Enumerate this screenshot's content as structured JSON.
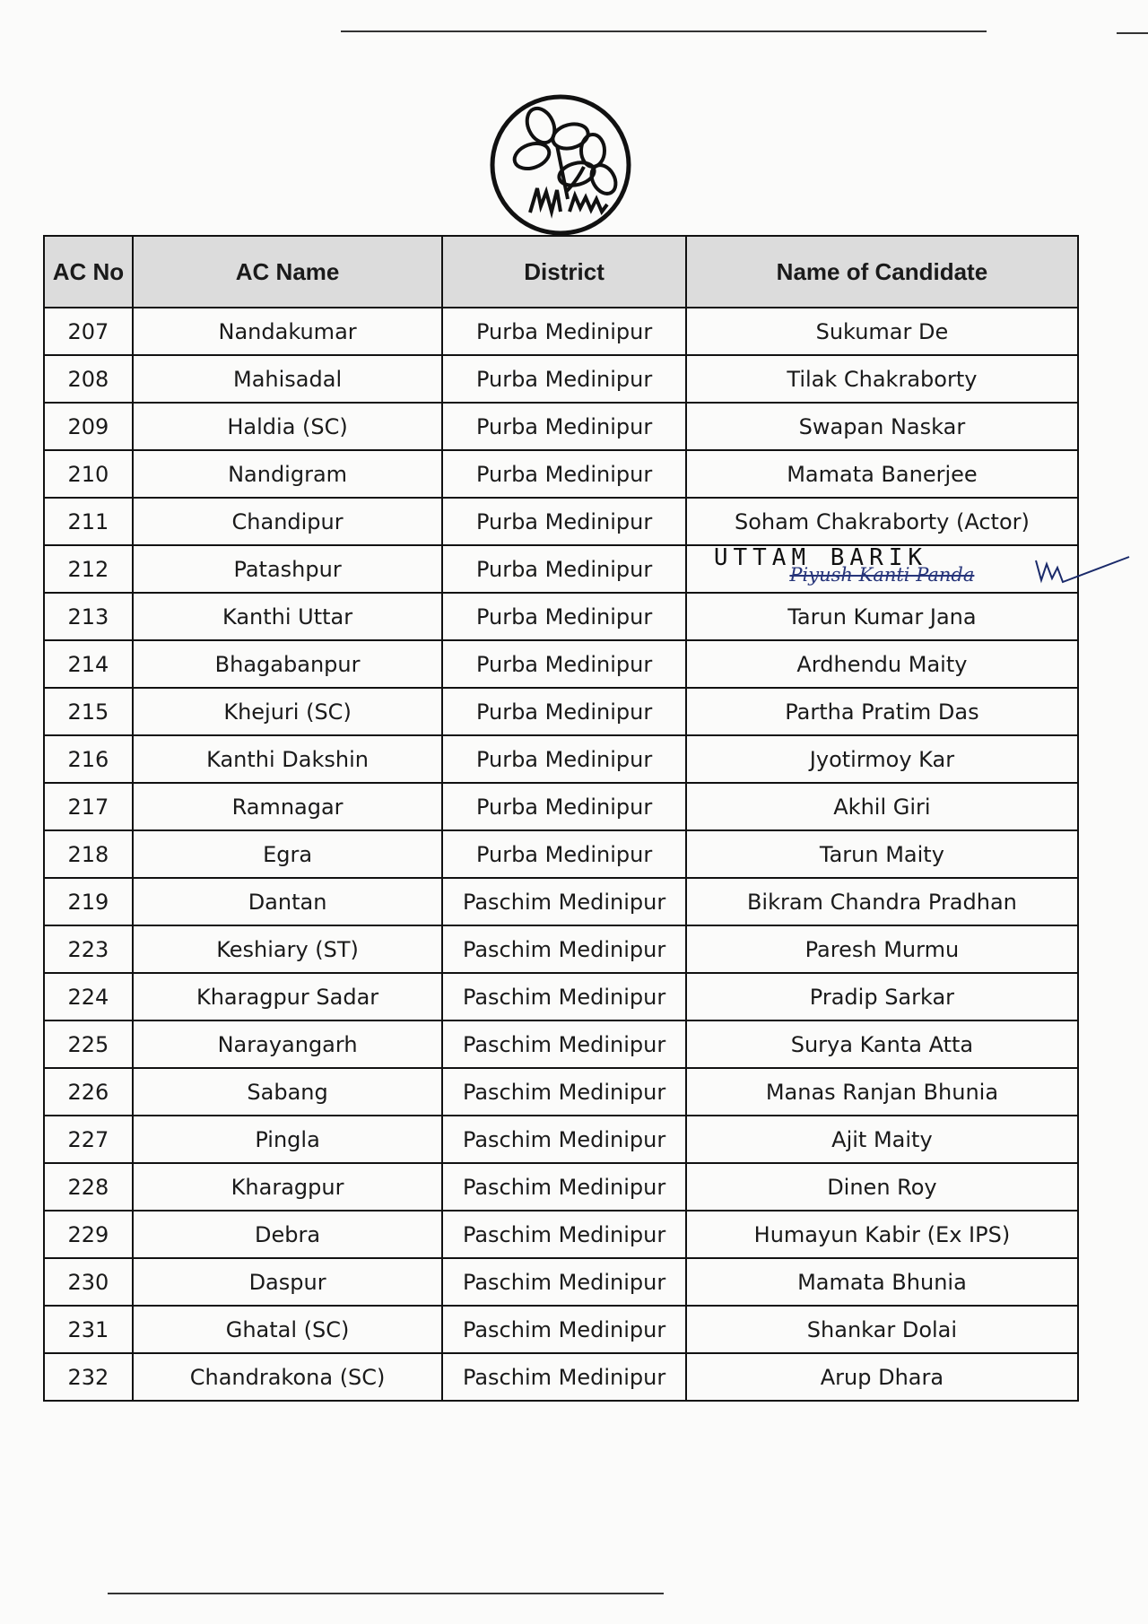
{
  "logo": {
    "name": "twin-flowers-grass-emblem"
  },
  "table": {
    "headers": [
      "AC No",
      "AC Name",
      "District",
      "Name of Candidate"
    ],
    "rows": [
      {
        "no": "207",
        "name": "Nandakumar",
        "district": "Purba Medinipur",
        "candidate": "Sukumar De"
      },
      {
        "no": "208",
        "name": "Mahisadal",
        "district": "Purba Medinipur",
        "candidate": "Tilak Chakraborty"
      },
      {
        "no": "209",
        "name": "Haldia (SC)",
        "district": "Purba Medinipur",
        "candidate": "Swapan Naskar"
      },
      {
        "no": "210",
        "name": "Nandigram",
        "district": "Purba Medinipur",
        "candidate": "Mamata Banerjee"
      },
      {
        "no": "211",
        "name": "Chandipur",
        "district": "Purba Medinipur",
        "candidate": "Soham Chakraborty (Actor)"
      },
      {
        "no": "212",
        "name": "Patashpur",
        "district": "Purba Medinipur",
        "candidate": "Piyush Kanti Panda",
        "handwritten_correction": "UTTAM BARIK"
      },
      {
        "no": "213",
        "name": "Kanthi Uttar",
        "district": "Purba Medinipur",
        "candidate": "Tarun Kumar Jana"
      },
      {
        "no": "214",
        "name": "Bhagabanpur",
        "district": "Purba Medinipur",
        "candidate": "Ardhendu Maity"
      },
      {
        "no": "215",
        "name": "Khejuri (SC)",
        "district": "Purba Medinipur",
        "candidate": "Partha Pratim Das"
      },
      {
        "no": "216",
        "name": "Kanthi Dakshin",
        "district": "Purba Medinipur",
        "candidate": "Jyotirmoy Kar"
      },
      {
        "no": "217",
        "name": "Ramnagar",
        "district": "Purba Medinipur",
        "candidate": "Akhil Giri"
      },
      {
        "no": "218",
        "name": "Egra",
        "district": "Purba Medinipur",
        "candidate": "Tarun Maity"
      },
      {
        "no": "219",
        "name": "Dantan",
        "district": "Paschim Medinipur",
        "candidate": "Bikram Chandra Pradhan"
      },
      {
        "no": "223",
        "name": "Keshiary (ST)",
        "district": "Paschim Medinipur",
        "candidate": "Paresh Murmu"
      },
      {
        "no": "224",
        "name": "Kharagpur Sadar",
        "district": "Paschim Medinipur",
        "candidate": "Pradip Sarkar"
      },
      {
        "no": "225",
        "name": "Narayangarh",
        "district": "Paschim Medinipur",
        "candidate": "Surya Kanta Atta"
      },
      {
        "no": "226",
        "name": "Sabang",
        "district": "Paschim Medinipur",
        "candidate": "Manas Ranjan Bhunia"
      },
      {
        "no": "227",
        "name": "Pingla",
        "district": "Paschim Medinipur",
        "candidate": "Ajit Maity"
      },
      {
        "no": "228",
        "name": "Kharagpur",
        "district": "Paschim Medinipur",
        "candidate": "Dinen Roy"
      },
      {
        "no": "229",
        "name": "Debra",
        "district": "Paschim Medinipur",
        "candidate": "Humayun Kabir (Ex IPS)"
      },
      {
        "no": "230",
        "name": "Daspur",
        "district": "Paschim Medinipur",
        "candidate": "Mamata Bhunia"
      },
      {
        "no": "231",
        "name": "Ghatal (SC)",
        "district": "Paschim Medinipur",
        "candidate": "Shankar Dolai"
      },
      {
        "no": "232",
        "name": "Chandrakona (SC)",
        "district": "Paschim Medinipur",
        "candidate": "Arup Dhara"
      }
    ]
  }
}
